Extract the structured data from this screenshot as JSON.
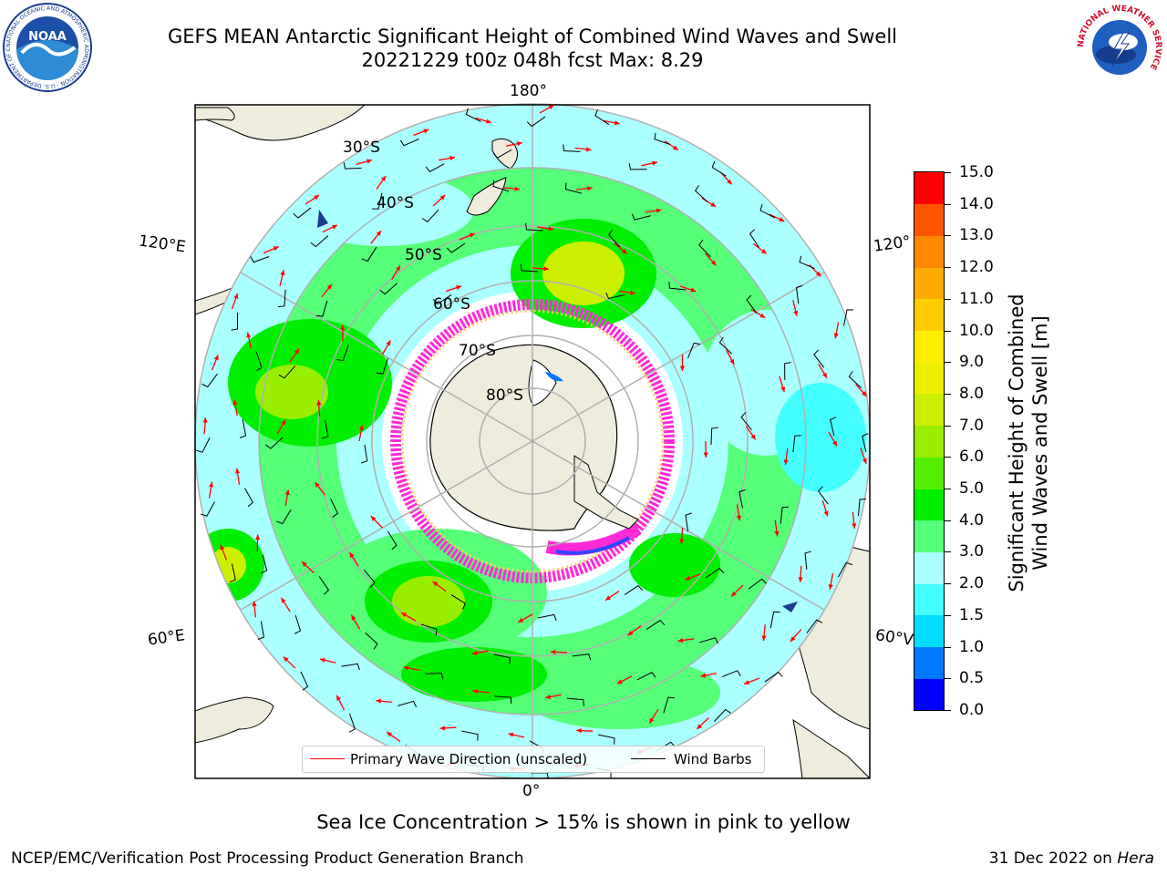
{
  "header": {
    "title_line1": "GEFS MEAN Antarctic Significant Height of Combined Wind Waves and Swell",
    "title_line2": "20221229 t00z 048h fcst   Max: 8.29"
  },
  "logos": {
    "noaa_text": "NOAA",
    "noaa_ring_text": "NATIONAL OCEANIC AND ATMOSPHERIC ADMINISTRATION · U.S. DEPARTMENT OF COMMERCE",
    "nws_ring_text": "NATIONAL WEATHER SERVICE"
  },
  "map": {
    "projection": "south-polar stereographic",
    "longitude_labels": {
      "top": "180°",
      "bottom": "0°",
      "upper_left": "120°E",
      "lower_left": "60°E",
      "upper_right": "120°",
      "lower_right": "60°V"
    },
    "latitude_labels": [
      "30°S",
      "40°S",
      "50°S",
      "60°S",
      "70°S",
      "80°S"
    ],
    "colors": {
      "land": "#eeecdc",
      "ice_edge": "#ff2bd6",
      "ice_fill": "#ffffff",
      "grid": "#b0b0b0",
      "wave_arrow": "#ff0000",
      "wind_barb": "#000000"
    }
  },
  "legend": {
    "wave_direction": "Primary Wave Direction (unscaled)",
    "wind_barbs": "Wind Barbs",
    "wave_color": "#ff0000",
    "barb_color": "#000000"
  },
  "colorbar": {
    "label_line1": "Significant Height of Combined",
    "label_line2": "Wind Waves and Swell [m]",
    "ticks": [
      "0.0",
      "0.5",
      "1.0",
      "1.5",
      "2.0",
      "3.0",
      "4.0",
      "5.0",
      "6.0",
      "7.0",
      "8.0",
      "9.0",
      "10.0",
      "11.0",
      "12.0",
      "13.0",
      "14.0",
      "15.0"
    ],
    "colors": [
      "#0000ff",
      "#0077ff",
      "#00ddff",
      "#44ffff",
      "#aaffff",
      "#55ff77",
      "#00ee00",
      "#55ee00",
      "#99ee00",
      "#ccee00",
      "#eeee00",
      "#ffee00",
      "#ffcc00",
      "#ffaa00",
      "#ff8800",
      "#ff5500",
      "#ff0000"
    ]
  },
  "note": "Sea Ice Concentration > 15% is shown in pink to yellow",
  "footer": {
    "left": "NCEP/EMC/Verification Post Processing Product Generation Branch",
    "right_date": "31 Dec 2022 on ",
    "right_machine": "Hera"
  }
}
